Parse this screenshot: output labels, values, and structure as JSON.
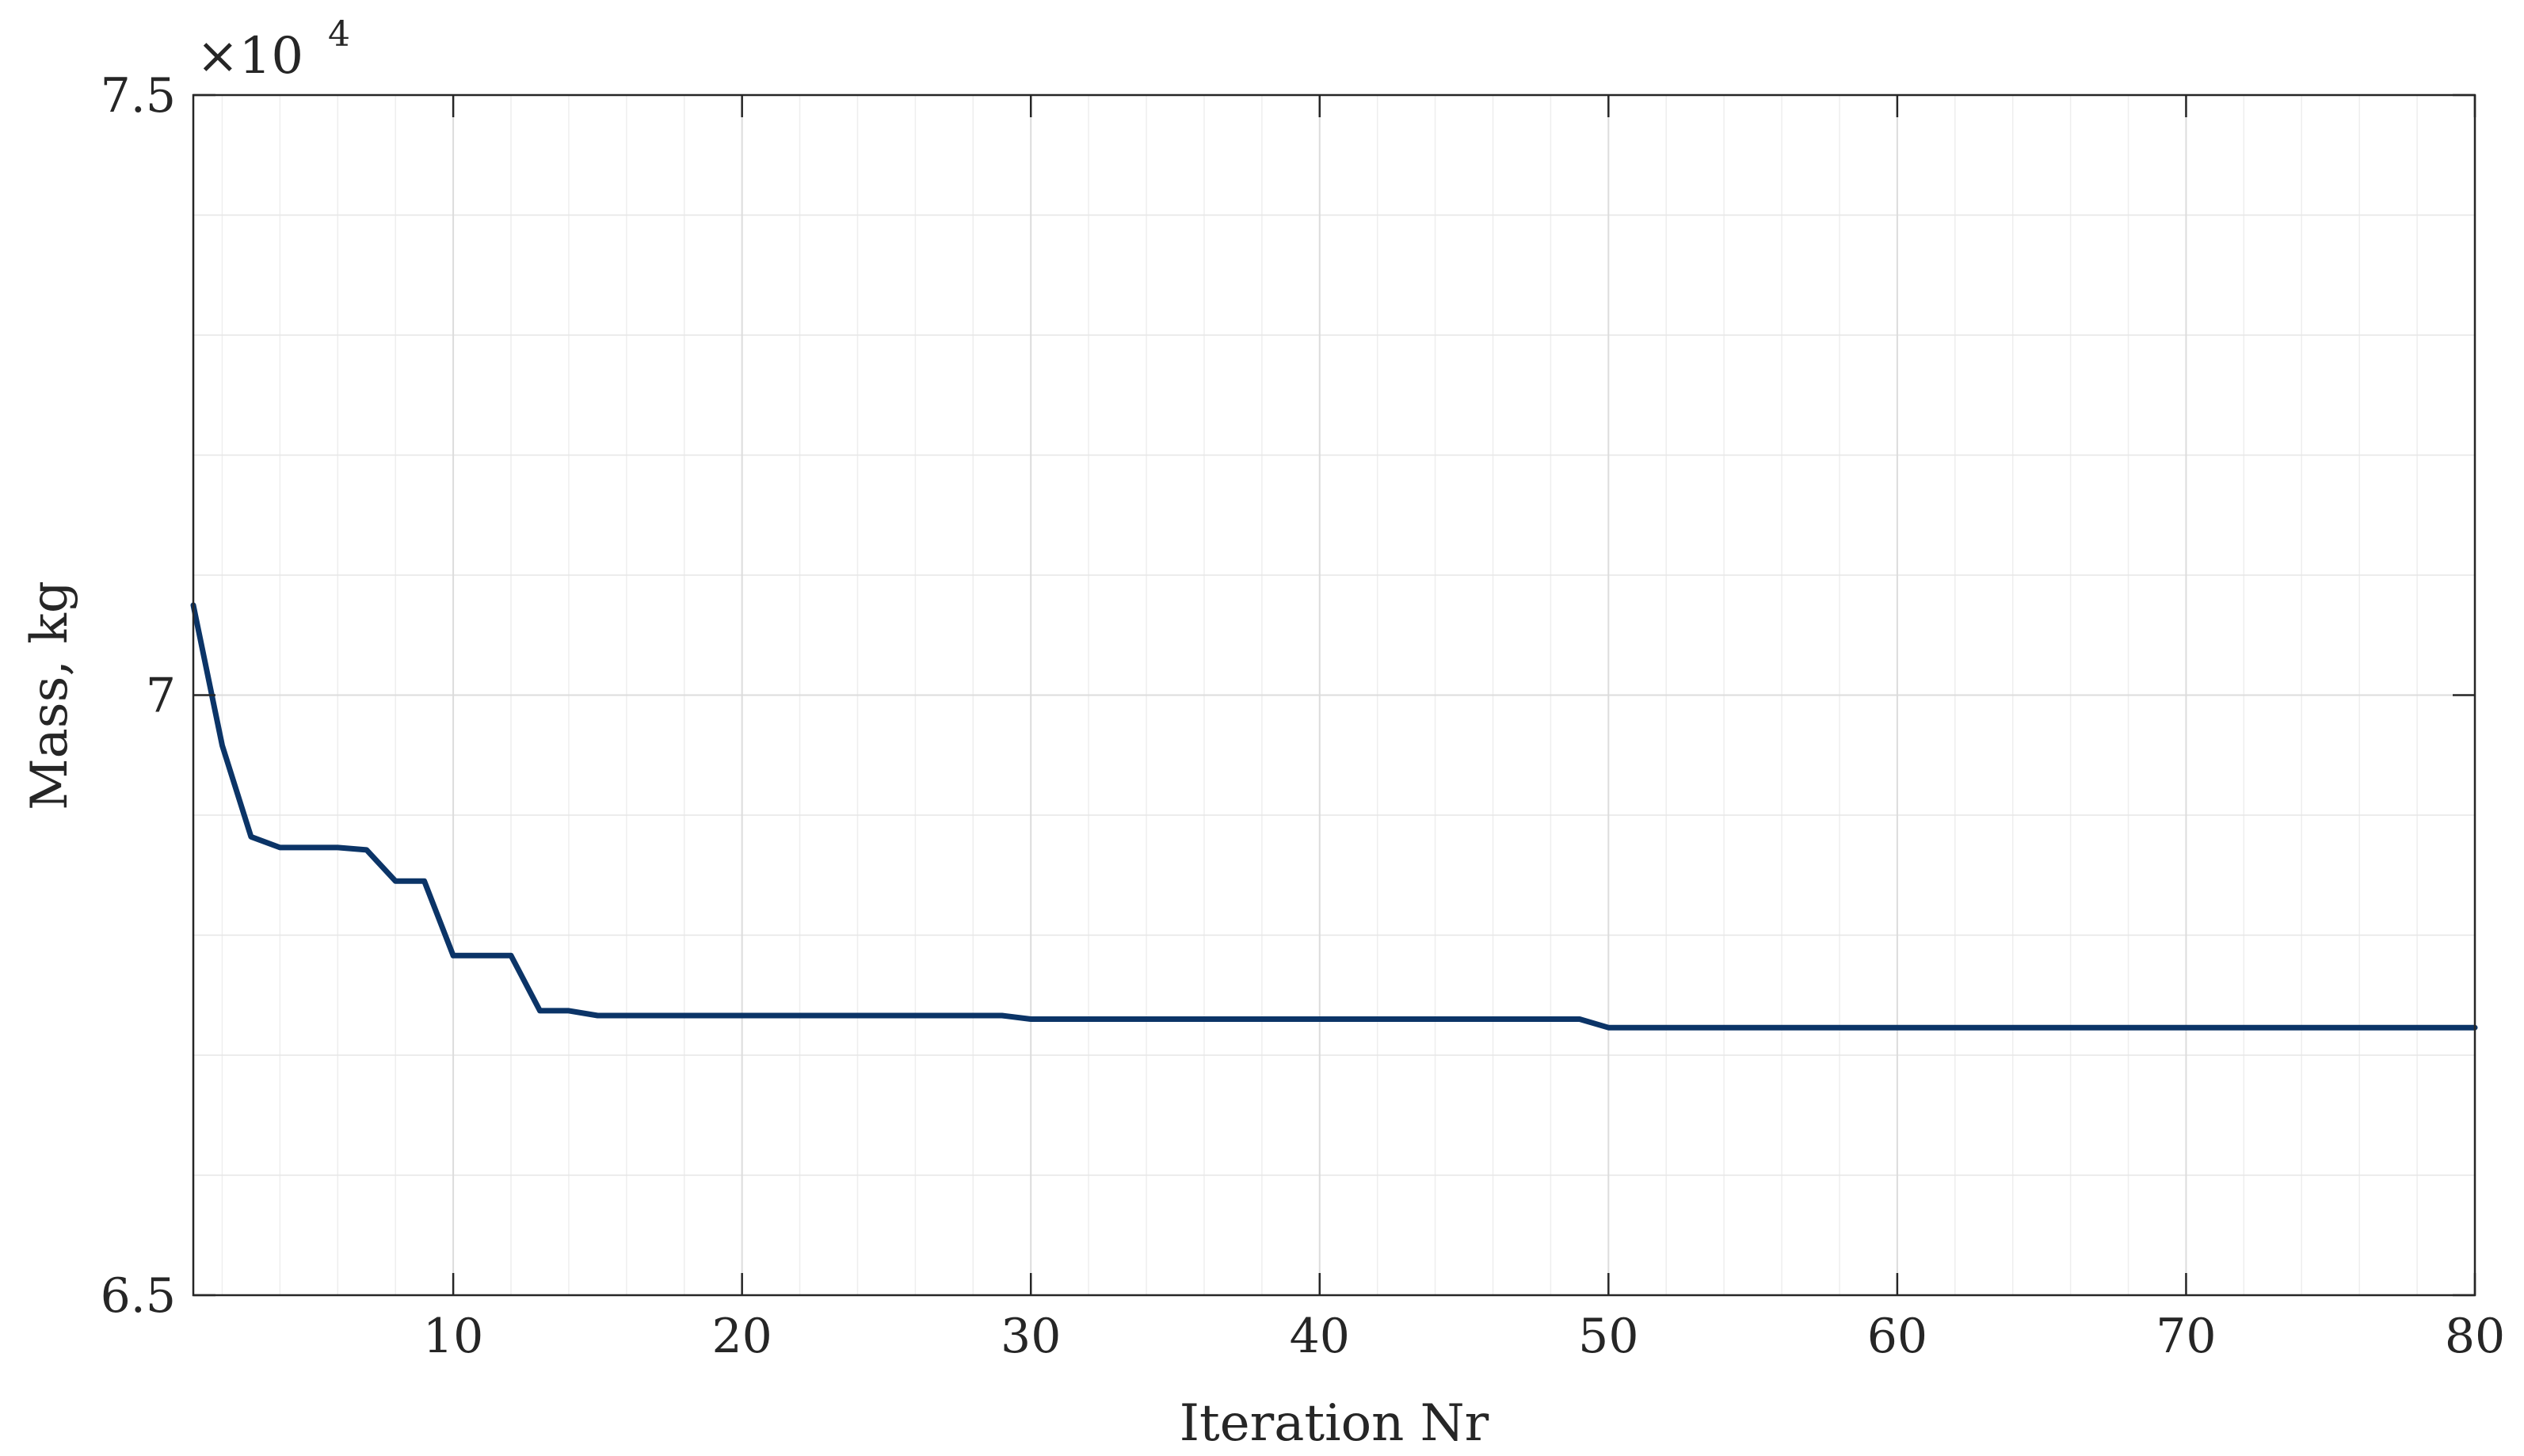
{
  "chart_data": {
    "type": "line",
    "xlabel": "Iteration Nr",
    "ylabel": "Mass, kg",
    "xlim": [
      1,
      80
    ],
    "ylim": [
      65000,
      75000
    ],
    "x_ticks": [
      10,
      20,
      30,
      40,
      50,
      60,
      70,
      80
    ],
    "x_tick_labels": [
      "10",
      "20",
      "30",
      "40",
      "50",
      "60",
      "70",
      "80"
    ],
    "y_ticks": [
      65000,
      70000,
      75000
    ],
    "y_tick_labels": [
      "6.5",
      "7",
      "7.5"
    ],
    "y_exponent": {
      "base": "×10",
      "power": "4"
    },
    "grid": true,
    "minor_grid": true,
    "line_color": "#0b3467",
    "series": [
      {
        "x": [
          1,
          2,
          3,
          4,
          5,
          6,
          7,
          8,
          9,
          10,
          11,
          12,
          13,
          14,
          15,
          16,
          17,
          18,
          19,
          20,
          21,
          22,
          23,
          24,
          25,
          26,
          27,
          28,
          29,
          30,
          31,
          32,
          33,
          34,
          35,
          36,
          37,
          38,
          39,
          40,
          41,
          42,
          43,
          44,
          45,
          46,
          47,
          48,
          49,
          50,
          51,
          52,
          53,
          54,
          55,
          56,
          57,
          58,
          59,
          60,
          61,
          62,
          63,
          64,
          65,
          66,
          67,
          68,
          69,
          70,
          71,
          72,
          73,
          74,
          75,
          76,
          77,
          78,
          79,
          80
        ],
        "y": [
          70750,
          69580,
          68820,
          68730,
          68730,
          68730,
          68710,
          68450,
          68450,
          67830,
          67830,
          67830,
          67370,
          67370,
          67330,
          67330,
          67330,
          67330,
          67330,
          67330,
          67330,
          67330,
          67330,
          67330,
          67330,
          67330,
          67330,
          67330,
          67330,
          67300,
          67300,
          67300,
          67300,
          67300,
          67300,
          67300,
          67300,
          67300,
          67300,
          67300,
          67300,
          67300,
          67300,
          67300,
          67300,
          67300,
          67300,
          67300,
          67300,
          67230,
          67230,
          67230,
          67230,
          67230,
          67230,
          67230,
          67230,
          67230,
          67230,
          67230,
          67230,
          67230,
          67230,
          67230,
          67230,
          67230,
          67230,
          67230,
          67230,
          67230,
          67230,
          67230,
          67230,
          67230,
          67230,
          67230,
          67230,
          67230,
          67230,
          67230
        ]
      }
    ]
  }
}
